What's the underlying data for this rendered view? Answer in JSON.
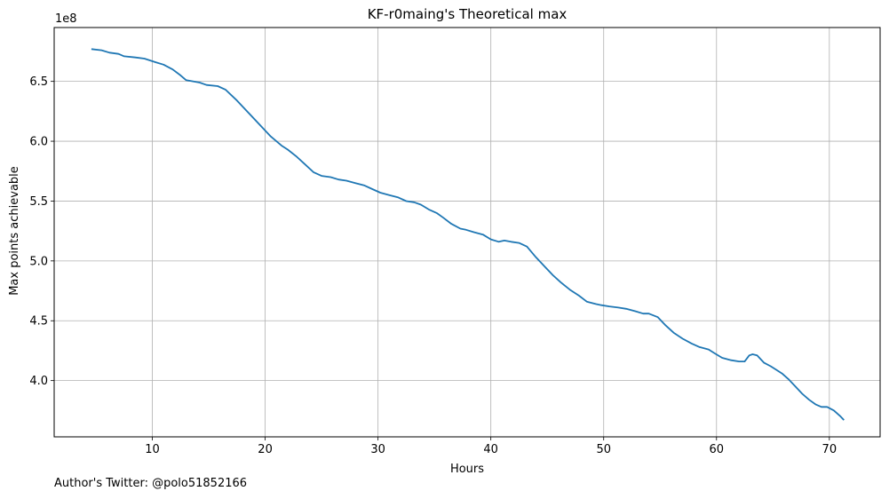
{
  "chart_data": {
    "type": "line",
    "title": "KF-r0maing's Theoretical max",
    "xlabel": "Hours",
    "ylabel": "Max points achievable",
    "y_offset_label": "1e8",
    "xlim": [
      1.3,
      74.5
    ],
    "ylim": [
      3.53,
      6.95
    ],
    "x_ticks": [
      10,
      20,
      30,
      40,
      50,
      60,
      70
    ],
    "x_tick_labels": [
      "10",
      "20",
      "30",
      "40",
      "50",
      "60",
      "70"
    ],
    "y_ticks": [
      4.0,
      4.5,
      5.0,
      5.5,
      6.0,
      6.5
    ],
    "y_tick_labels": [
      "4.0",
      "4.5",
      "5.0",
      "5.5",
      "6.0",
      "6.5"
    ],
    "grid": true,
    "series": [
      {
        "color": "#1f77b4",
        "x": [
          4.6,
          5.5,
          6.2,
          7.0,
          7.5,
          8.5,
          9.3,
          10.3,
          11.0,
          11.8,
          12.5,
          13.0,
          14.2,
          14.8,
          15.8,
          16.5,
          17.5,
          18.5,
          19.5,
          20.5,
          21.5,
          22.0,
          22.8,
          23.5,
          24.3,
          25.0,
          25.8,
          26.5,
          27.2,
          28.0,
          28.8,
          29.5,
          30.2,
          31.0,
          31.8,
          32.5,
          33.2,
          33.8,
          34.5,
          35.2,
          35.8,
          36.5,
          37.3,
          37.8,
          38.5,
          39.3,
          40.0,
          40.7,
          41.2,
          41.8,
          42.5,
          43.2,
          44.0,
          44.8,
          45.5,
          46.2,
          47.0,
          47.8,
          48.5,
          49.3,
          49.8,
          50.5,
          51.3,
          52.0,
          52.8,
          53.5,
          54.0,
          54.8,
          55.5,
          56.2,
          57.0,
          57.8,
          58.5,
          59.3,
          59.8,
          60.5,
          61.3,
          62.0,
          62.5,
          62.9,
          63.2,
          63.6,
          64.2,
          64.8,
          65.3,
          65.8,
          66.4,
          67.0,
          67.6,
          68.2,
          68.8,
          69.3,
          69.8,
          70.4,
          71.0,
          71.3
        ],
        "y": [
          6.77,
          6.76,
          6.74,
          6.73,
          6.71,
          6.7,
          6.69,
          6.66,
          6.64,
          6.6,
          6.55,
          6.51,
          6.49,
          6.47,
          6.46,
          6.43,
          6.34,
          6.24,
          6.14,
          6.04,
          5.96,
          5.93,
          5.87,
          5.81,
          5.74,
          5.71,
          5.7,
          5.68,
          5.67,
          5.65,
          5.63,
          5.6,
          5.57,
          5.55,
          5.53,
          5.5,
          5.49,
          5.47,
          5.43,
          5.4,
          5.36,
          5.31,
          5.27,
          5.26,
          5.24,
          5.22,
          5.18,
          5.16,
          5.17,
          5.16,
          5.15,
          5.12,
          5.03,
          4.95,
          4.88,
          4.82,
          4.76,
          4.71,
          4.66,
          4.64,
          4.63,
          4.62,
          4.61,
          4.6,
          4.58,
          4.56,
          4.56,
          4.53,
          4.46,
          4.4,
          4.35,
          4.31,
          4.28,
          4.26,
          4.23,
          4.19,
          4.17,
          4.16,
          4.16,
          4.21,
          4.22,
          4.21,
          4.15,
          4.12,
          4.09,
          4.06,
          4.01,
          3.95,
          3.89,
          3.84,
          3.8,
          3.78,
          3.78,
          3.75,
          3.7,
          3.67
        ]
      }
    ]
  },
  "footnote": "Author's Twitter: @polo51852166"
}
